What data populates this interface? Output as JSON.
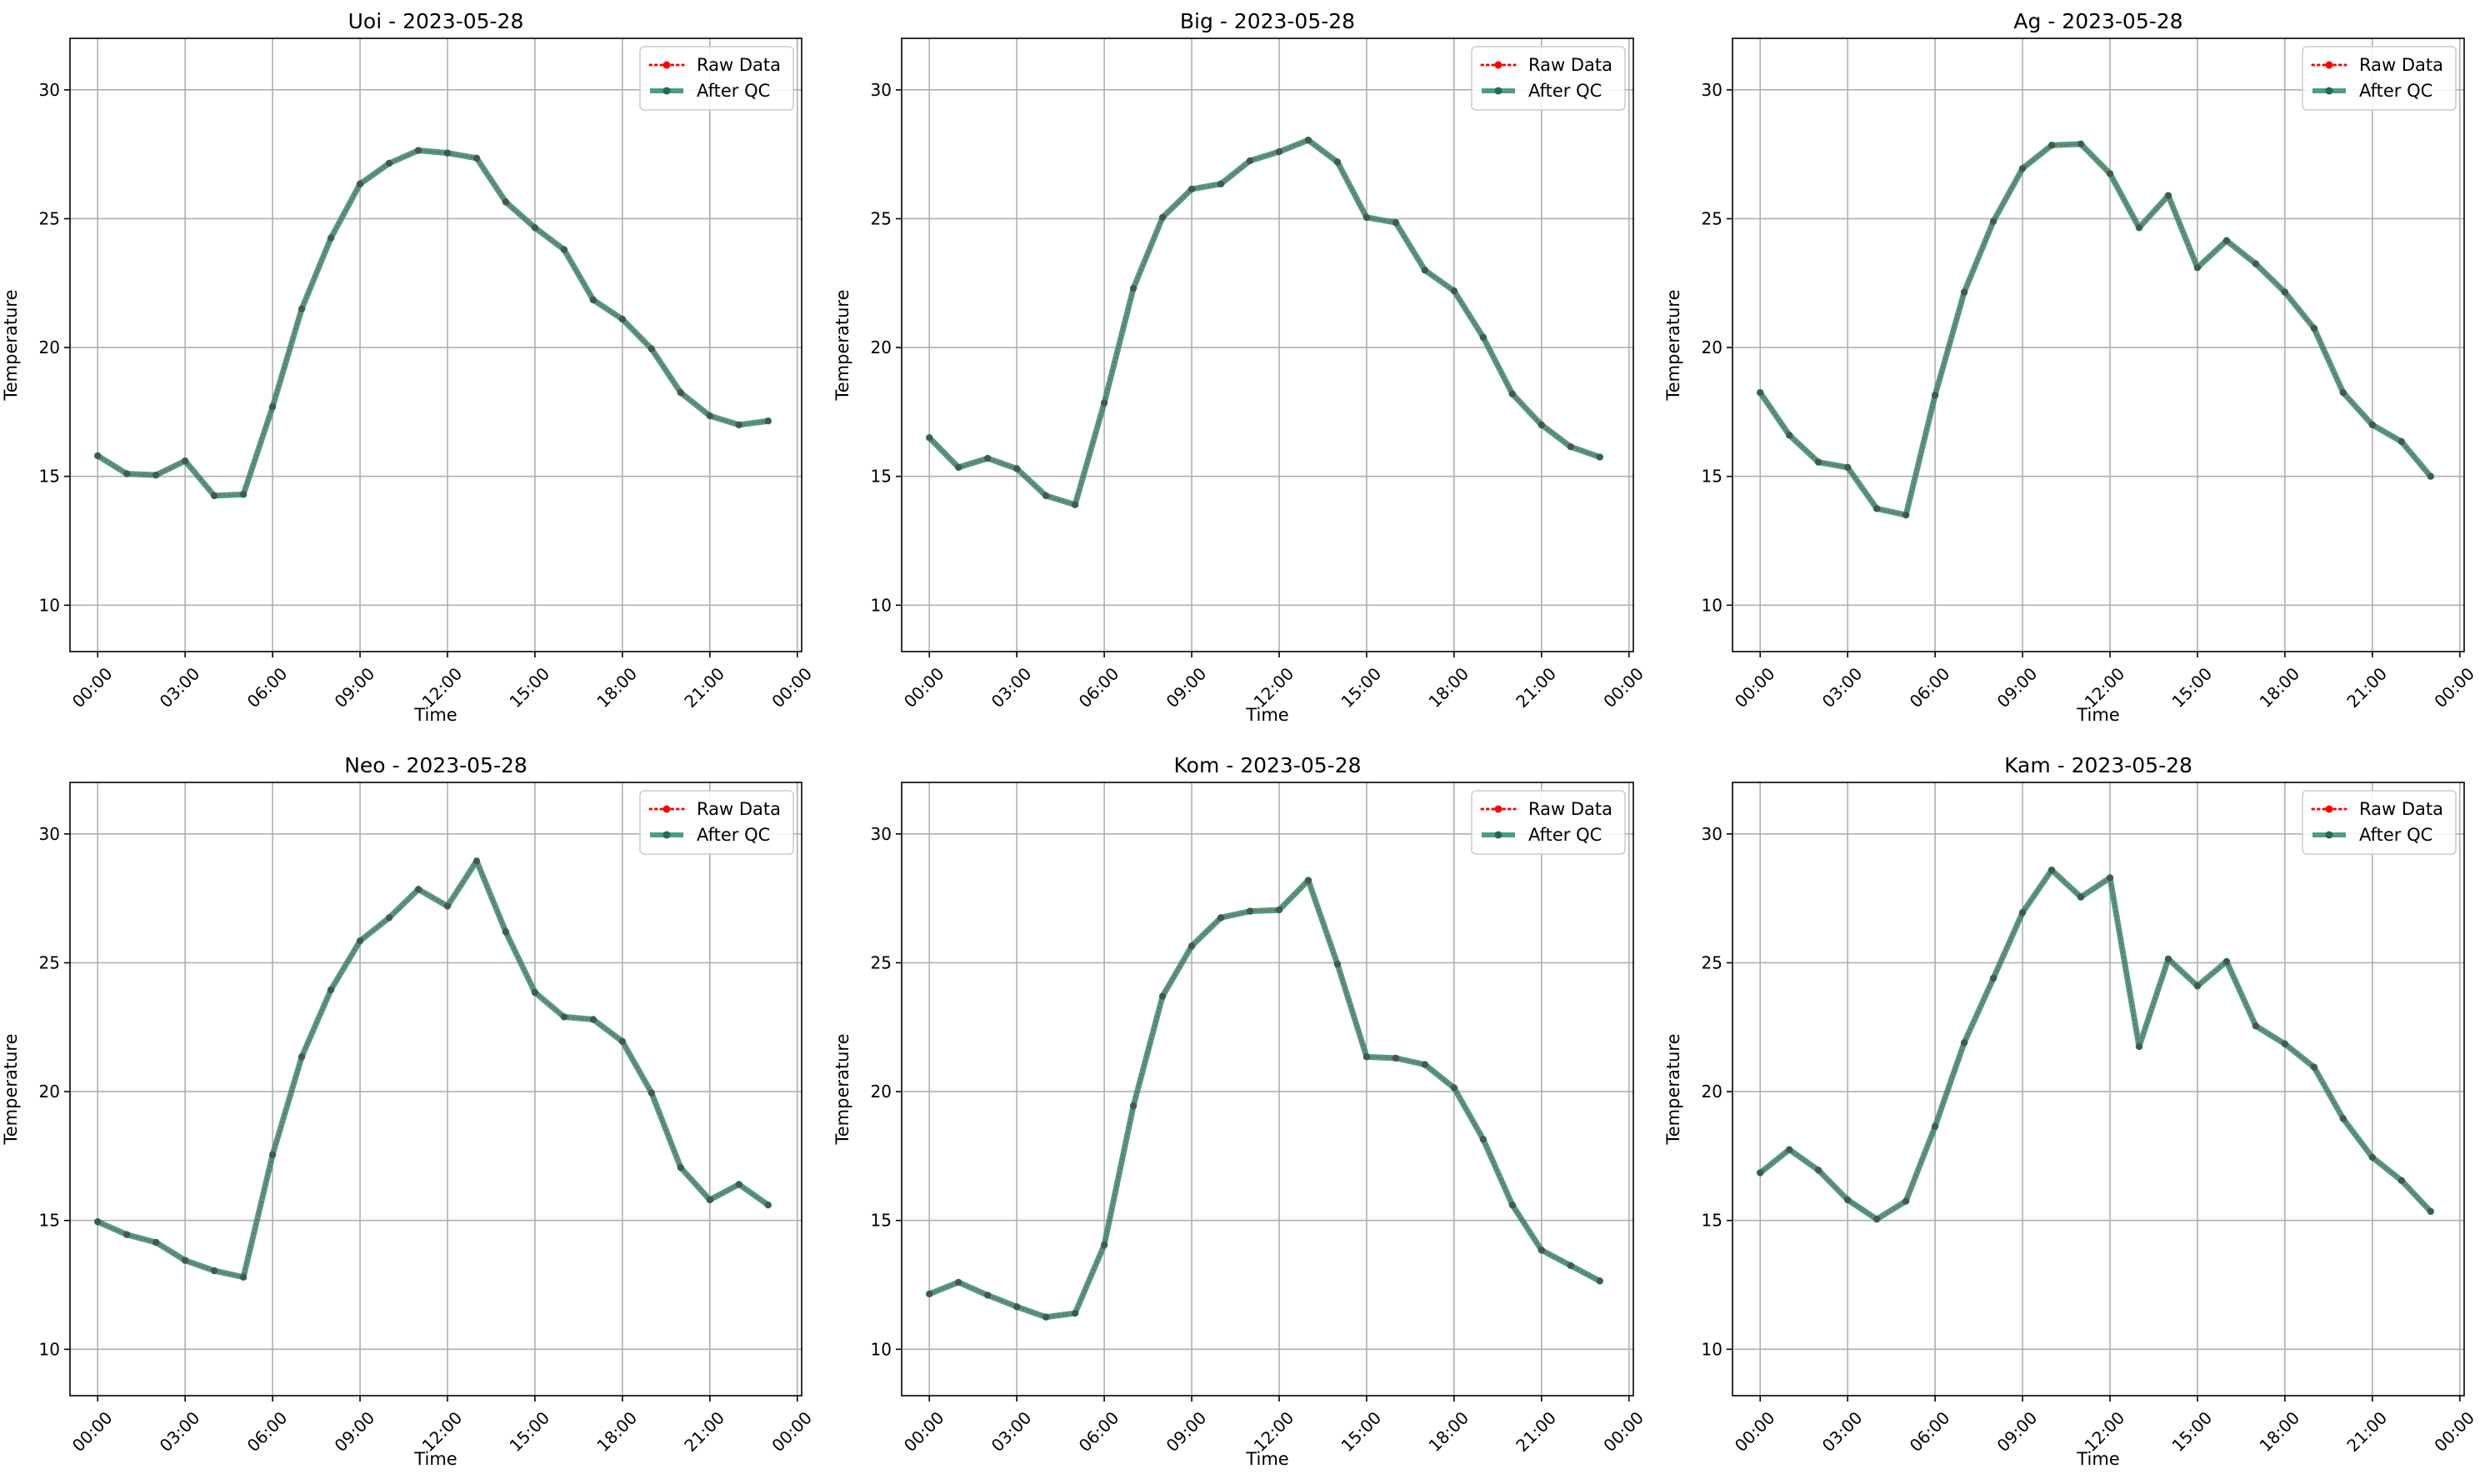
{
  "colors": {
    "raw": "#ff0000",
    "qc": "#2e8b6e",
    "qc_marker": "#236b53",
    "grid": "#b0b0b0"
  },
  "chart_data": [
    {
      "type": "line",
      "title": "Uoi - 2023-05-28",
      "xlabel": "Time",
      "ylabel": "Temperature",
      "ylim": [
        8.2,
        32.0
      ],
      "xlim": [
        -0.95,
        24.15
      ],
      "yticks": [
        10,
        15,
        20,
        25,
        30
      ],
      "xticks": [
        0,
        3,
        6,
        9,
        12,
        15,
        18,
        21,
        24
      ],
      "xtick_labels": [
        "00:00",
        "03:00",
        "06:00",
        "09:00",
        "12:00",
        "15:00",
        "18:00",
        "21:00",
        "00:00"
      ],
      "grid": true,
      "legend": "top-right",
      "legend_labels": [
        "Raw Data",
        "After QC"
      ],
      "x": [
        0,
        1,
        2,
        3,
        4,
        5,
        6,
        7,
        8,
        9,
        10,
        11,
        12,
        13,
        14,
        15,
        16,
        17,
        18,
        19,
        20,
        21,
        22,
        23
      ],
      "series": [
        {
          "name": "Raw Data",
          "values": [
            15.8,
            15.1,
            15.05,
            15.6,
            14.25,
            14.3,
            17.7,
            21.5,
            24.25,
            26.35,
            27.15,
            27.65,
            27.55,
            27.35,
            25.65,
            24.65,
            23.8,
            21.85,
            21.1,
            19.95,
            18.25,
            17.35,
            17.0,
            17.15
          ]
        },
        {
          "name": "After QC",
          "values": [
            15.8,
            15.1,
            15.05,
            15.6,
            14.25,
            14.3,
            17.7,
            21.5,
            24.25,
            26.35,
            27.15,
            27.65,
            27.55,
            27.35,
            25.65,
            24.65,
            23.8,
            21.85,
            21.1,
            19.95,
            18.25,
            17.35,
            17.0,
            17.15
          ]
        }
      ]
    },
    {
      "type": "line",
      "title": "Big - 2023-05-28",
      "xlabel": "Time",
      "ylabel": "Temperature",
      "ylim": [
        8.2,
        32.0
      ],
      "xlim": [
        -0.95,
        24.15
      ],
      "yticks": [
        10,
        15,
        20,
        25,
        30
      ],
      "xticks": [
        0,
        3,
        6,
        9,
        12,
        15,
        18,
        21,
        24
      ],
      "xtick_labels": [
        "00:00",
        "03:00",
        "06:00",
        "09:00",
        "12:00",
        "15:00",
        "18:00",
        "21:00",
        "00:00"
      ],
      "grid": true,
      "legend": "top-right",
      "legend_labels": [
        "Raw Data",
        "After QC"
      ],
      "x": [
        0,
        1,
        2,
        3,
        4,
        5,
        6,
        7,
        8,
        9,
        10,
        11,
        12,
        13,
        14,
        15,
        16,
        17,
        18,
        19,
        20,
        21,
        22,
        23
      ],
      "series": [
        {
          "name": "Raw Data",
          "values": [
            16.5,
            15.35,
            15.7,
            15.3,
            14.25,
            13.9,
            17.85,
            22.3,
            25.05,
            26.15,
            26.35,
            27.25,
            27.6,
            28.05,
            27.2,
            25.05,
            24.85,
            23.0,
            22.2,
            20.4,
            18.2,
            17.0,
            16.15,
            15.75
          ]
        },
        {
          "name": "After QC",
          "values": [
            16.5,
            15.35,
            15.7,
            15.3,
            14.25,
            13.9,
            17.85,
            22.3,
            25.05,
            26.15,
            26.35,
            27.25,
            27.6,
            28.05,
            27.2,
            25.05,
            24.85,
            23.0,
            22.2,
            20.4,
            18.2,
            17.0,
            16.15,
            15.75
          ]
        }
      ]
    },
    {
      "type": "line",
      "title": "Ag - 2023-05-28",
      "xlabel": "Time",
      "ylabel": "Temperature",
      "ylim": [
        8.2,
        32.0
      ],
      "xlim": [
        -0.95,
        24.15
      ],
      "yticks": [
        10,
        15,
        20,
        25,
        30
      ],
      "xticks": [
        0,
        3,
        6,
        9,
        12,
        15,
        18,
        21,
        24
      ],
      "xtick_labels": [
        "00:00",
        "03:00",
        "06:00",
        "09:00",
        "12:00",
        "15:00",
        "18:00",
        "21:00",
        "00:00"
      ],
      "grid": true,
      "legend": "top-right",
      "legend_labels": [
        "Raw Data",
        "After QC"
      ],
      "x": [
        0,
        1,
        2,
        3,
        4,
        5,
        6,
        7,
        8,
        9,
        10,
        11,
        12,
        13,
        14,
        15,
        16,
        17,
        18,
        19,
        20,
        21,
        22,
        23
      ],
      "series": [
        {
          "name": "Raw Data",
          "values": [
            18.25,
            16.6,
            15.55,
            15.35,
            13.75,
            13.5,
            18.15,
            22.15,
            24.9,
            26.95,
            27.85,
            27.9,
            26.75,
            24.65,
            25.9,
            23.1,
            24.15,
            23.25,
            22.15,
            20.75,
            18.25,
            17.0,
            16.35,
            15.0
          ]
        },
        {
          "name": "After QC",
          "values": [
            18.25,
            16.6,
            15.55,
            15.35,
            13.75,
            13.5,
            18.15,
            22.15,
            24.9,
            26.95,
            27.85,
            27.9,
            26.75,
            24.65,
            25.9,
            23.1,
            24.15,
            23.25,
            22.15,
            20.75,
            18.25,
            17.0,
            16.35,
            15.0
          ]
        }
      ]
    },
    {
      "type": "line",
      "title": "Neo - 2023-05-28",
      "xlabel": "Time",
      "ylabel": "Temperature",
      "ylim": [
        8.2,
        32.0
      ],
      "xlim": [
        -0.95,
        24.15
      ],
      "yticks": [
        10,
        15,
        20,
        25,
        30
      ],
      "xticks": [
        0,
        3,
        6,
        9,
        12,
        15,
        18,
        21,
        24
      ],
      "xtick_labels": [
        "00:00",
        "03:00",
        "06:00",
        "09:00",
        "12:00",
        "15:00",
        "18:00",
        "21:00",
        "00:00"
      ],
      "grid": true,
      "legend": "top-right",
      "legend_labels": [
        "Raw Data",
        "After QC"
      ],
      "x": [
        0,
        1,
        2,
        3,
        4,
        5,
        6,
        7,
        8,
        9,
        10,
        11,
        12,
        13,
        14,
        15,
        16,
        17,
        18,
        19,
        20,
        21,
        22,
        23
      ],
      "series": [
        {
          "name": "Raw Data",
          "values": [
            14.95,
            14.45,
            14.15,
            13.45,
            13.05,
            12.8,
            17.55,
            21.35,
            23.95,
            25.85,
            26.75,
            27.85,
            27.2,
            28.95,
            26.2,
            23.85,
            22.9,
            22.8,
            21.95,
            19.95,
            17.05,
            15.8,
            16.4,
            15.6
          ]
        },
        {
          "name": "After QC",
          "values": [
            14.95,
            14.45,
            14.15,
            13.45,
            13.05,
            12.8,
            17.55,
            21.35,
            23.95,
            25.85,
            26.75,
            27.85,
            27.2,
            28.95,
            26.2,
            23.85,
            22.9,
            22.8,
            21.95,
            19.95,
            17.05,
            15.8,
            16.4,
            15.6
          ]
        }
      ]
    },
    {
      "type": "line",
      "title": "Kom - 2023-05-28",
      "xlabel": "Time",
      "ylabel": "Temperature",
      "ylim": [
        8.2,
        32.0
      ],
      "xlim": [
        -0.95,
        24.15
      ],
      "yticks": [
        10,
        15,
        20,
        25,
        30
      ],
      "xticks": [
        0,
        3,
        6,
        9,
        12,
        15,
        18,
        21,
        24
      ],
      "xtick_labels": [
        "00:00",
        "03:00",
        "06:00",
        "09:00",
        "12:00",
        "15:00",
        "18:00",
        "21:00",
        "00:00"
      ],
      "grid": true,
      "legend": "top-right",
      "legend_labels": [
        "Raw Data",
        "After QC"
      ],
      "x": [
        0,
        1,
        2,
        3,
        4,
        5,
        6,
        7,
        8,
        9,
        10,
        11,
        12,
        13,
        14,
        15,
        16,
        17,
        18,
        19,
        20,
        21,
        22,
        23
      ],
      "series": [
        {
          "name": "Raw Data",
          "values": [
            12.15,
            12.6,
            12.1,
            11.65,
            11.25,
            11.4,
            14.05,
            19.45,
            23.7,
            25.65,
            26.75,
            27.0,
            27.05,
            28.2,
            24.95,
            21.35,
            21.3,
            21.05,
            20.15,
            18.15,
            15.6,
            13.85,
            13.25,
            12.65
          ]
        },
        {
          "name": "After QC",
          "values": [
            12.15,
            12.6,
            12.1,
            11.65,
            11.25,
            11.4,
            14.05,
            19.45,
            23.7,
            25.65,
            26.75,
            27.0,
            27.05,
            28.2,
            24.95,
            21.35,
            21.3,
            21.05,
            20.15,
            18.15,
            15.6,
            13.85,
            13.25,
            12.65
          ]
        }
      ]
    },
    {
      "type": "line",
      "title": "Kam - 2023-05-28",
      "xlabel": "Time",
      "ylabel": "Temperature",
      "ylim": [
        8.2,
        32.0
      ],
      "xlim": [
        -0.95,
        24.15
      ],
      "yticks": [
        10,
        15,
        20,
        25,
        30
      ],
      "xticks": [
        0,
        3,
        6,
        9,
        12,
        15,
        18,
        21,
        24
      ],
      "xtick_labels": [
        "00:00",
        "03:00",
        "06:00",
        "09:00",
        "12:00",
        "15:00",
        "18:00",
        "21:00",
        "00:00"
      ],
      "grid": true,
      "legend": "top-right",
      "legend_labels": [
        "Raw Data",
        "After QC"
      ],
      "x": [
        0,
        1,
        2,
        3,
        4,
        5,
        6,
        7,
        8,
        9,
        10,
        11,
        12,
        13,
        14,
        15,
        16,
        17,
        18,
        19,
        20,
        21,
        22,
        23
      ],
      "series": [
        {
          "name": "Raw Data",
          "values": [
            16.85,
            17.75,
            16.95,
            15.8,
            15.05,
            15.75,
            18.65,
            21.9,
            24.4,
            26.95,
            28.6,
            27.55,
            28.3,
            21.75,
            25.15,
            24.1,
            25.05,
            22.55,
            21.85,
            20.95,
            18.95,
            17.45,
            16.55,
            15.35
          ]
        },
        {
          "name": "After QC",
          "values": [
            16.85,
            17.75,
            16.95,
            15.8,
            15.05,
            15.75,
            18.65,
            21.9,
            24.4,
            26.95,
            28.6,
            27.55,
            28.3,
            21.75,
            25.15,
            24.1,
            25.05,
            22.55,
            21.85,
            20.95,
            18.95,
            17.45,
            16.55,
            15.35
          ]
        }
      ]
    }
  ]
}
